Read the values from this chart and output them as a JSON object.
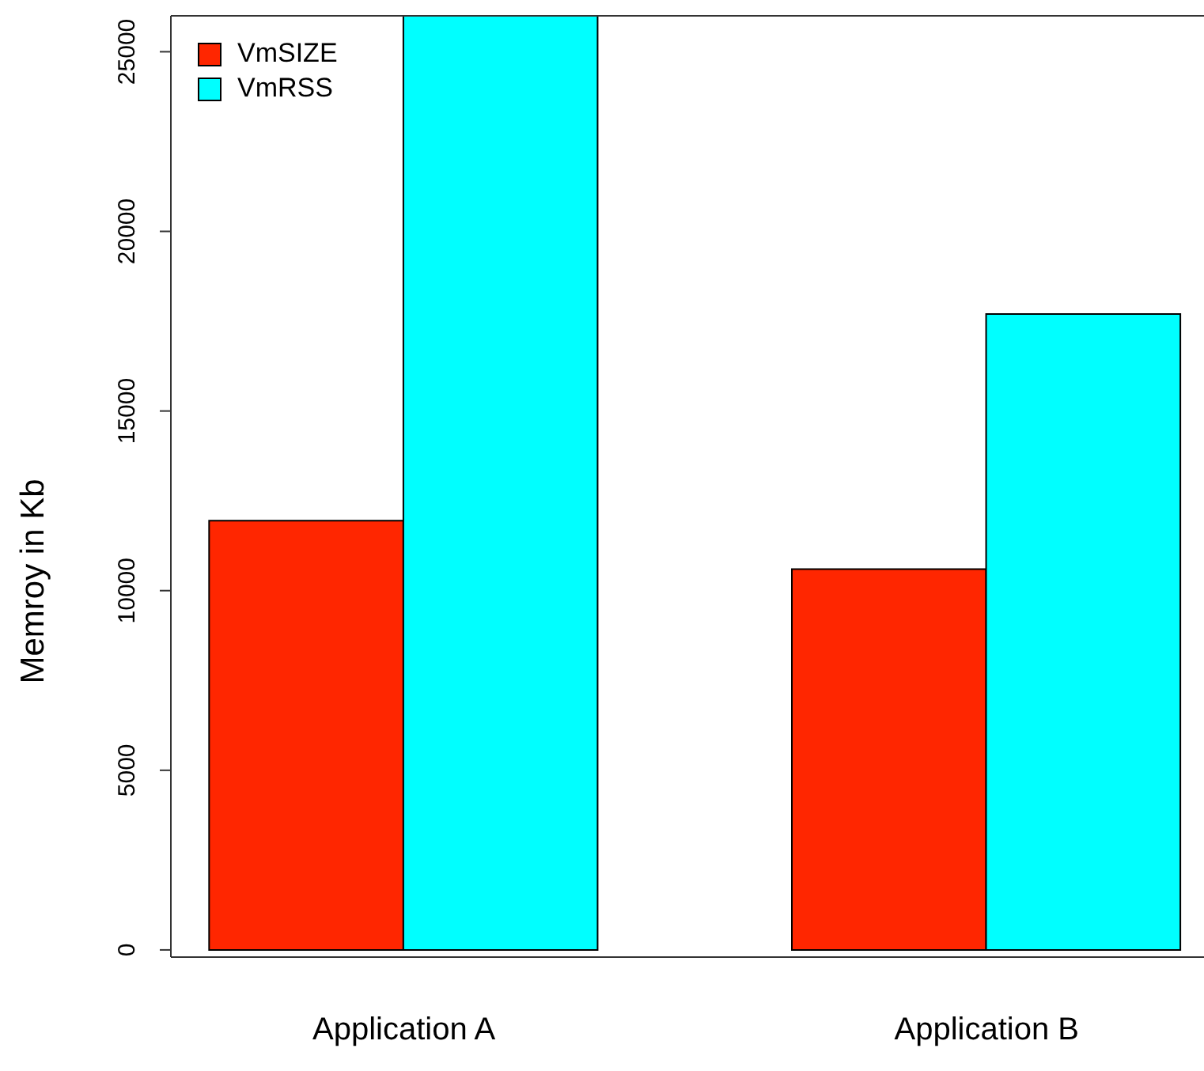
{
  "chart_data": {
    "type": "bar",
    "ylabel": "Memroy in Kb",
    "categories": [
      "Application A",
      "Application B"
    ],
    "series": [
      {
        "name": "VmSIZE",
        "color": "#ff2600",
        "values": [
          11950,
          10600
        ]
      },
      {
        "name": "VmRSS",
        "color": "#00ffff",
        "values": [
          26000,
          17700
        ]
      }
    ],
    "ylim": [
      -200,
      26000
    ],
    "yticks": [
      0,
      5000,
      10000,
      15000,
      20000,
      25000
    ],
    "grid": false,
    "legend": "top left"
  }
}
